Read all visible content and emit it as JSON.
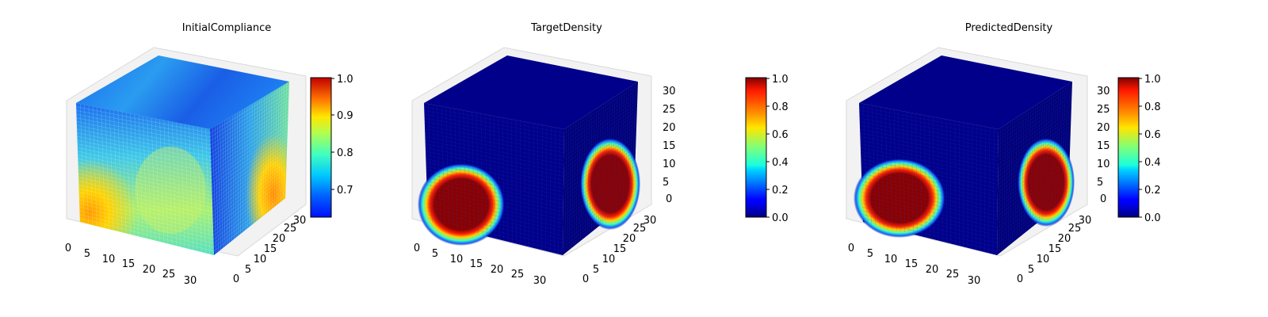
{
  "chart_data": [
    {
      "type": "heatmap",
      "title": "InitialCompliance",
      "x_ticks": [
        "0",
        "5",
        "10",
        "15",
        "20",
        "25",
        "30"
      ],
      "y_ticks": [
        "0",
        "5",
        "10",
        "15",
        "20",
        "25",
        "30"
      ],
      "z_ticks": [],
      "colorbar": {
        "ticks": [
          "0.7",
          "0.8",
          "0.9",
          "1.0"
        ],
        "values": [
          0.7,
          0.8,
          0.9,
          1.0
        ],
        "range": [
          0.63,
          1.0
        ],
        "colormap": "jet"
      },
      "grid": true
    },
    {
      "type": "heatmap",
      "title": "TargetDensity",
      "x_ticks": [
        "0",
        "5",
        "10",
        "15",
        "20",
        "25",
        "30"
      ],
      "y_ticks": [
        "0",
        "5",
        "10",
        "15",
        "20",
        "25",
        "30"
      ],
      "z_ticks": [
        "0",
        "5",
        "10",
        "15",
        "20",
        "25",
        "30"
      ],
      "colorbar": {
        "ticks": [
          "0.0",
          "0.2",
          "0.4",
          "0.6",
          "0.8",
          "1.0"
        ],
        "values": [
          0.0,
          0.2,
          0.4,
          0.6,
          0.8,
          1.0
        ],
        "range": [
          0.0,
          1.0
        ],
        "colormap": "jet"
      },
      "grid": true
    },
    {
      "type": "heatmap",
      "title": "PredictedDensity",
      "x_ticks": [
        "0",
        "5",
        "10",
        "15",
        "20",
        "25",
        "30"
      ],
      "y_ticks": [
        "0",
        "5",
        "10",
        "15",
        "20",
        "25",
        "30"
      ],
      "z_ticks": [
        "0",
        "5",
        "10",
        "15",
        "20",
        "25",
        "30"
      ],
      "colorbar": {
        "ticks": [
          "0.0",
          "0.2",
          "0.4",
          "0.6",
          "0.8",
          "1.0"
        ],
        "values": [
          0.0,
          0.2,
          0.4,
          0.6,
          0.8,
          1.0
        ],
        "range": [
          0.0,
          1.0
        ],
        "colormap": "jet"
      },
      "grid": true
    }
  ]
}
